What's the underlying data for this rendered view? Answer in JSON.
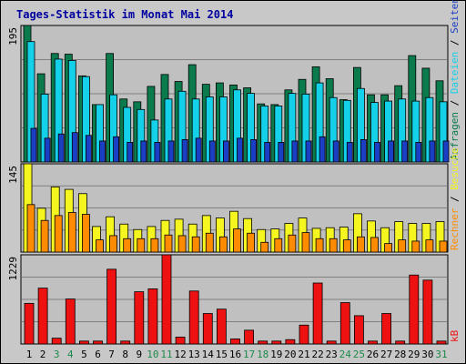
{
  "title": "Tages-Statistik im Monat Mai 2014",
  "colors": {
    "background": "#c8c8c8",
    "panel": "#c0c0c0",
    "title": "#0000a0",
    "anfragen": "#0b7a4c",
    "dateien": "#14d0e8",
    "seiten": "#1b3fc4",
    "besuche": "#f5f520",
    "rechner": "#ff8c00",
    "kb": "#ee1111",
    "weekend_label": "#1b8a4a",
    "weekday_label": "#000000"
  },
  "chart_data": [
    {
      "type": "bar",
      "name": "hits-files-pages",
      "ytick_label": "195",
      "ylim": [
        0,
        195
      ],
      "grid": true,
      "side_labels": [
        "Anfragen",
        "/",
        "Dateien",
        "/",
        "Seiten"
      ],
      "categories": [
        "1",
        "2",
        "3",
        "4",
        "5",
        "6",
        "7",
        "8",
        "9",
        "10",
        "11",
        "12",
        "13",
        "14",
        "15",
        "16",
        "17",
        "18",
        "19",
        "20",
        "21",
        "22",
        "23",
        "24",
        "25",
        "26",
        "27",
        "28",
        "29",
        "30",
        "31"
      ],
      "series": [
        {
          "name": "Anfragen",
          "color_key": "anfragen",
          "values": [
            195,
            126,
            155,
            154,
            123,
            82,
            155,
            90,
            86,
            108,
            125,
            115,
            139,
            111,
            113,
            110,
            106,
            83,
            82,
            103,
            118,
            136,
            119,
            89,
            135,
            96,
            96,
            109,
            152,
            134,
            116
          ]
        },
        {
          "name": "Dateien",
          "color_key": "dateien",
          "values": [
            172,
            97,
            147,
            145,
            122,
            82,
            96,
            78,
            75,
            60,
            90,
            101,
            90,
            93,
            93,
            103,
            98,
            80,
            80,
            98,
            97,
            113,
            92,
            88,
            105,
            85,
            87,
            90,
            87,
            92,
            86
          ]
        },
        {
          "name": "Seiten",
          "color_key": "seiten",
          "values": [
            48,
            34,
            40,
            42,
            38,
            30,
            36,
            28,
            30,
            28,
            30,
            32,
            34,
            30,
            30,
            34,
            32,
            28,
            28,
            30,
            30,
            36,
            30,
            28,
            32,
            28,
            30,
            30,
            28,
            30,
            30
          ]
        }
      ]
    },
    {
      "type": "bar",
      "name": "visits-hosts",
      "ytick_label": "145",
      "ylim": [
        0,
        145
      ],
      "grid": true,
      "side_labels": [
        "Rechner",
        "/",
        "Besuche"
      ],
      "categories": [
        "1",
        "2",
        "3",
        "4",
        "5",
        "6",
        "7",
        "8",
        "9",
        "10",
        "11",
        "12",
        "13",
        "14",
        "15",
        "16",
        "17",
        "18",
        "19",
        "20",
        "21",
        "22",
        "23",
        "24",
        "25",
        "26",
        "27",
        "28",
        "29",
        "30",
        "31"
      ],
      "series": [
        {
          "name": "Besuche",
          "color_key": "besuche",
          "values": [
            145,
            72,
            107,
            103,
            96,
            42,
            58,
            46,
            37,
            42,
            52,
            54,
            46,
            60,
            56,
            67,
            55,
            37,
            38,
            47,
            56,
            39,
            40,
            41,
            63,
            51,
            40,
            50,
            47,
            47,
            50
          ]
        },
        {
          "name": "Rechner",
          "color_key": "rechner",
          "values": [
            78,
            52,
            60,
            65,
            62,
            20,
            27,
            22,
            22,
            22,
            28,
            27,
            25,
            31,
            25,
            38,
            31,
            16,
            22,
            28,
            32,
            22,
            22,
            20,
            25,
            24,
            14,
            20,
            18,
            20,
            18
          ]
        }
      ]
    },
    {
      "type": "bar",
      "name": "kilobytes",
      "ytick_label": "1229",
      "ylim": [
        0,
        1229
      ],
      "grid": true,
      "side_labels": [
        "kB"
      ],
      "categories": [
        "1",
        "2",
        "3",
        "4",
        "5",
        "6",
        "7",
        "8",
        "9",
        "10",
        "11",
        "12",
        "13",
        "14",
        "15",
        "16",
        "17",
        "18",
        "19",
        "20",
        "21",
        "22",
        "23",
        "24",
        "25",
        "26",
        "27",
        "28",
        "29",
        "30",
        "31"
      ],
      "series": [
        {
          "name": "kB",
          "color_key": "kb",
          "values": [
            560,
            770,
            80,
            620,
            40,
            40,
            1030,
            40,
            720,
            760,
            1229,
            95,
            730,
            420,
            480,
            70,
            190,
            40,
            40,
            60,
            260,
            840,
            40,
            570,
            390,
            40,
            420,
            40,
            950,
            880,
            40
          ]
        }
      ]
    }
  ],
  "x_axis": {
    "labels": [
      "1",
      "2",
      "3",
      "4",
      "5",
      "6",
      "7",
      "8",
      "9",
      "10",
      "11",
      "12",
      "13",
      "14",
      "15",
      "16",
      "17",
      "18",
      "19",
      "20",
      "21",
      "22",
      "23",
      "24",
      "25",
      "26",
      "27",
      "28",
      "29",
      "30",
      "31"
    ],
    "weekend_days": [
      "3",
      "4",
      "10",
      "11",
      "17",
      "18",
      "24",
      "25",
      "31"
    ]
  }
}
